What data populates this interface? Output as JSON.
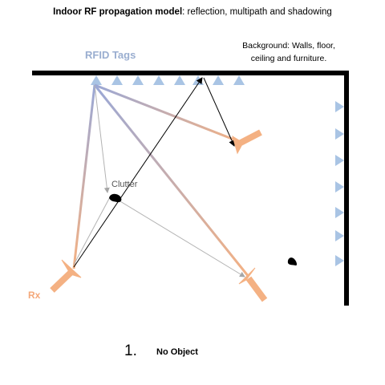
{
  "title": {
    "bold_part": "Indoor RF propagation model",
    "rest": ": reflection, multipath and shadowing"
  },
  "background_note": "Background: Walls, floor, ceiling and furniture.",
  "labels": {
    "tags": "RFID Tags",
    "clutter": "Clutter",
    "rx": "Rx"
  },
  "figure": {
    "number": "1.",
    "caption": "No Object"
  },
  "colors": {
    "tag": "#a9c4e4",
    "tags_label": "#9aaed0",
    "antenna": "#f4b183",
    "rx_label": "#f4a87a",
    "ray_start": "#9aa8d6",
    "ray_end": "#f4b183",
    "scatter_ray": "#b3b3b3",
    "wall": "#000000"
  },
  "icons": {
    "tag": "triangle-tag-icon",
    "antenna": "antenna-icon",
    "clutter": "blob-icon"
  }
}
